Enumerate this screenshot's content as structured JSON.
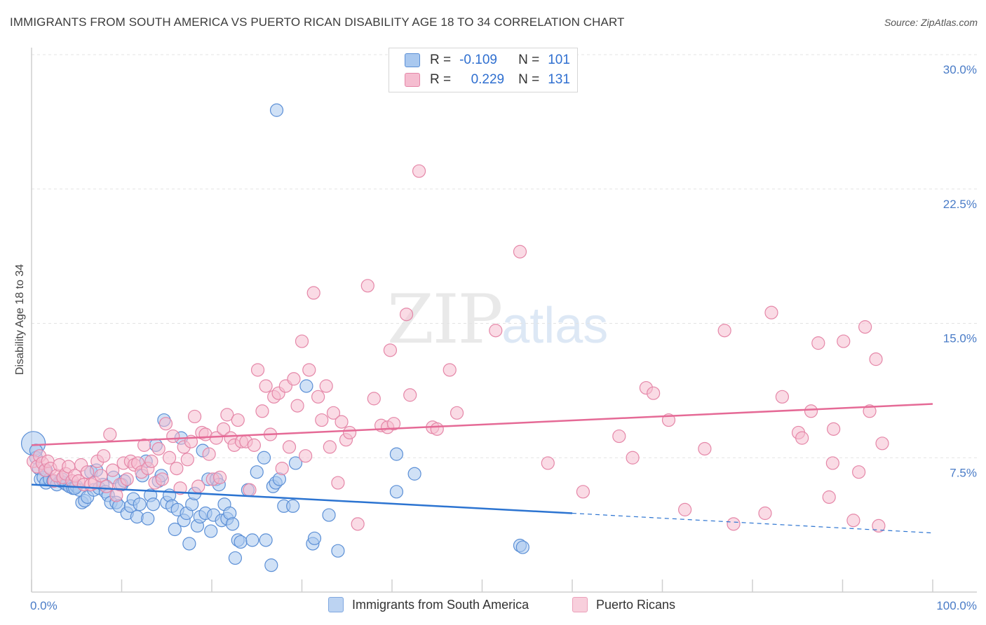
{
  "title": "IMMIGRANTS FROM SOUTH AMERICA VS PUERTO RICAN DISABILITY AGE 18 TO 34 CORRELATION CHART",
  "source": "Source: ZipAtlas.com",
  "watermark": {
    "zip": "ZIP",
    "atlas": "atlas"
  },
  "legend": {
    "rows": [
      {
        "r_label": "R =",
        "r_value": "-0.109",
        "n_label": "N =",
        "n_value": "101"
      },
      {
        "r_label": "R =",
        "r_value": "0.229",
        "n_label": "N =",
        "n_value": "131"
      }
    ]
  },
  "bottom_legend": {
    "series_a": "Immigrants from South America",
    "series_b": "Puerto Ricans"
  },
  "colors": {
    "blue_fill": "#a9c8ef",
    "blue_stroke": "#5b8fd6",
    "blue_line": "#2c74d1",
    "pink_fill": "#f5bdd0",
    "pink_stroke": "#e587a8",
    "pink_line": "#e56a96",
    "grid": "#e3e3e3",
    "tick_text": "#4a7cc7"
  },
  "chart_data": {
    "type": "scatter",
    "title": "IMMIGRANTS FROM SOUTH AMERICA VS PUERTO RICAN DISABILITY AGE 18 TO 34 CORRELATION CHART",
    "xlabel": "",
    "ylabel": "Disability Age 18 to 34",
    "xlim": [
      0,
      100
    ],
    "ylim": [
      0,
      30
    ],
    "x_tick_labels": [
      "0.0%",
      "100.0%"
    ],
    "y_ticks": [
      7.5,
      15.0,
      22.5,
      30.0
    ],
    "y_tick_labels": [
      "7.5%",
      "15.0%",
      "22.5%",
      "30.0%"
    ],
    "grid": true,
    "series": [
      {
        "name": "Immigrants from South America",
        "color": "blue",
        "r": -0.109,
        "n": 101,
        "trend": {
          "x0": 0,
          "y0": 6.0,
          "x1": 60,
          "y1": 4.4,
          "dash_to_x": 100,
          "dash_to_y": 3.3
        },
        "points": [
          [
            0.2,
            8.3
          ],
          [
            0.5,
            7.5
          ],
          [
            0.8,
            6.9
          ],
          [
            1.0,
            6.3
          ],
          [
            1.3,
            6.4
          ],
          [
            1.6,
            6.1
          ],
          [
            2.0,
            6.3
          ],
          [
            2.4,
            6.2
          ],
          [
            2.8,
            6.0
          ],
          [
            3.2,
            6.2
          ],
          [
            3.6,
            6.1
          ],
          [
            3.9,
            6.0
          ],
          [
            4.2,
            5.9
          ],
          [
            4.6,
            5.8
          ],
          [
            5.0,
            5.9
          ],
          [
            5.3,
            5.7
          ],
          [
            5.6,
            5.0
          ],
          [
            5.9,
            5.1
          ],
          [
            6.2,
            5.3
          ],
          [
            6.6,
            6.7
          ],
          [
            6.9,
            5.7
          ],
          [
            7.2,
            6.8
          ],
          [
            7.5,
            5.8
          ],
          [
            7.9,
            6.0
          ],
          [
            8.2,
            5.6
          ],
          [
            8.5,
            5.4
          ],
          [
            8.8,
            5.0
          ],
          [
            9.1,
            6.4
          ],
          [
            9.4,
            5.0
          ],
          [
            9.7,
            4.8
          ],
          [
            10.0,
            6.0
          ],
          [
            10.3,
            6.2
          ],
          [
            10.6,
            4.4
          ],
          [
            11.0,
            4.8
          ],
          [
            11.3,
            5.2
          ],
          [
            11.7,
            4.2
          ],
          [
            12.0,
            4.9
          ],
          [
            12.3,
            6.5
          ],
          [
            12.7,
            7.3
          ],
          [
            12.9,
            4.1
          ],
          [
            13.2,
            5.4
          ],
          [
            13.5,
            4.9
          ],
          [
            13.8,
            8.2
          ],
          [
            14.1,
            6.2
          ],
          [
            14.4,
            6.5
          ],
          [
            14.7,
            9.6
          ],
          [
            15.0,
            5.0
          ],
          [
            15.3,
            5.4
          ],
          [
            15.6,
            4.8
          ],
          [
            15.9,
            3.5
          ],
          [
            16.2,
            4.6
          ],
          [
            16.6,
            8.6
          ],
          [
            16.9,
            4.0
          ],
          [
            17.2,
            4.4
          ],
          [
            17.5,
            2.7
          ],
          [
            17.8,
            4.9
          ],
          [
            18.1,
            5.5
          ],
          [
            18.4,
            3.7
          ],
          [
            18.7,
            4.2
          ],
          [
            19.0,
            7.9
          ],
          [
            19.3,
            4.4
          ],
          [
            19.6,
            6.3
          ],
          [
            19.9,
            3.4
          ],
          [
            20.2,
            4.3
          ],
          [
            20.5,
            6.3
          ],
          [
            20.8,
            6.0
          ],
          [
            21.1,
            4.0
          ],
          [
            21.4,
            4.9
          ],
          [
            21.7,
            4.1
          ],
          [
            22.0,
            4.4
          ],
          [
            22.3,
            3.8
          ],
          [
            22.6,
            1.9
          ],
          [
            22.9,
            2.9
          ],
          [
            23.2,
            2.8
          ],
          [
            24.0,
            5.7
          ],
          [
            24.5,
            2.9
          ],
          [
            25.0,
            6.7
          ],
          [
            25.8,
            7.5
          ],
          [
            26.0,
            2.9
          ],
          [
            26.6,
            1.5
          ],
          [
            26.8,
            5.9
          ],
          [
            27.1,
            6.1
          ],
          [
            27.5,
            6.3
          ],
          [
            28.0,
            4.8
          ],
          [
            29.0,
            4.8
          ],
          [
            29.3,
            7.2
          ],
          [
            30.5,
            11.5
          ],
          [
            31.2,
            2.7
          ],
          [
            31.4,
            3.0
          ],
          [
            33.0,
            4.3
          ],
          [
            34.0,
            2.3
          ],
          [
            40.5,
            5.6
          ],
          [
            40.5,
            7.7
          ],
          [
            42.5,
            6.6
          ],
          [
            54.2,
            2.6
          ],
          [
            54.5,
            2.5
          ],
          [
            27.2,
            26.9
          ],
          [
            0.5,
            7.9
          ],
          [
            1.6,
            6.8
          ],
          [
            4.8,
            5.8
          ],
          [
            3.4,
            6.3
          ]
        ]
      },
      {
        "name": "Puerto Ricans",
        "color": "pink",
        "r": 0.229,
        "n": 131,
        "trend": {
          "x0": 0,
          "y0": 8.2,
          "x1": 100,
          "y1": 10.5
        },
        "points": [
          [
            0.2,
            7.3
          ],
          [
            0.6,
            7.0
          ],
          [
            0.9,
            7.6
          ],
          [
            1.2,
            7.2
          ],
          [
            1.5,
            6.8
          ],
          [
            1.8,
            7.3
          ],
          [
            2.1,
            6.9
          ],
          [
            2.5,
            6.2
          ],
          [
            2.8,
            6.5
          ],
          [
            3.1,
            7.1
          ],
          [
            3.5,
            6.4
          ],
          [
            3.8,
            6.6
          ],
          [
            4.1,
            7.0
          ],
          [
            4.5,
            6.2
          ],
          [
            4.8,
            6.5
          ],
          [
            5.2,
            6.2
          ],
          [
            5.5,
            7.1
          ],
          [
            5.8,
            6.0
          ],
          [
            6.2,
            6.7
          ],
          [
            6.6,
            6.0
          ],
          [
            7.0,
            6.1
          ],
          [
            7.3,
            7.3
          ],
          [
            7.7,
            6.5
          ],
          [
            8.0,
            7.6
          ],
          [
            8.3,
            5.9
          ],
          [
            8.7,
            8.8
          ],
          [
            9.0,
            6.8
          ],
          [
            9.4,
            5.4
          ],
          [
            9.8,
            6.0
          ],
          [
            10.2,
            7.2
          ],
          [
            10.6,
            6.3
          ],
          [
            11.0,
            7.3
          ],
          [
            11.4,
            7.1
          ],
          [
            11.8,
            7.2
          ],
          [
            12.2,
            6.7
          ],
          [
            12.5,
            8.2
          ],
          [
            12.9,
            6.9
          ],
          [
            13.3,
            7.3
          ],
          [
            13.7,
            6.1
          ],
          [
            14.1,
            8.0
          ],
          [
            14.5,
            6.3
          ],
          [
            14.9,
            9.4
          ],
          [
            15.3,
            7.5
          ],
          [
            15.7,
            8.7
          ],
          [
            16.1,
            6.9
          ],
          [
            16.5,
            5.8
          ],
          [
            16.9,
            8.1
          ],
          [
            17.3,
            7.4
          ],
          [
            17.7,
            8.4
          ],
          [
            18.1,
            9.8
          ],
          [
            18.5,
            5.9
          ],
          [
            18.9,
            8.9
          ],
          [
            19.3,
            8.8
          ],
          [
            19.7,
            7.7
          ],
          [
            20.1,
            6.3
          ],
          [
            20.5,
            8.6
          ],
          [
            20.9,
            6.4
          ],
          [
            21.3,
            9.1
          ],
          [
            21.7,
            9.9
          ],
          [
            22.1,
            8.6
          ],
          [
            22.5,
            8.2
          ],
          [
            22.9,
            9.6
          ],
          [
            23.3,
            8.4
          ],
          [
            23.8,
            8.4
          ],
          [
            24.2,
            5.7
          ],
          [
            24.7,
            8.2
          ],
          [
            25.1,
            12.4
          ],
          [
            25.6,
            10.1
          ],
          [
            26.0,
            11.5
          ],
          [
            26.5,
            8.8
          ],
          [
            26.9,
            10.9
          ],
          [
            27.4,
            11.1
          ],
          [
            27.8,
            6.9
          ],
          [
            28.2,
            11.5
          ],
          [
            28.6,
            8.1
          ],
          [
            29.1,
            11.9
          ],
          [
            29.5,
            10.4
          ],
          [
            30.0,
            14.0
          ],
          [
            30.4,
            7.6
          ],
          [
            30.8,
            12.4
          ],
          [
            31.3,
            16.7
          ],
          [
            31.8,
            10.9
          ],
          [
            32.2,
            9.6
          ],
          [
            32.7,
            11.5
          ],
          [
            33.1,
            8.1
          ],
          [
            33.5,
            10.0
          ],
          [
            34.0,
            6.1
          ],
          [
            34.4,
            9.5
          ],
          [
            34.9,
            8.5
          ],
          [
            35.3,
            8.9
          ],
          [
            36.2,
            3.8
          ],
          [
            37.3,
            17.1
          ],
          [
            38.0,
            10.8
          ],
          [
            38.8,
            9.3
          ],
          [
            39.5,
            9.2
          ],
          [
            39.8,
            13.5
          ],
          [
            40.2,
            9.4
          ],
          [
            41.6,
            15.5
          ],
          [
            42.0,
            11.0
          ],
          [
            43.0,
            23.5
          ],
          [
            44.5,
            9.2
          ],
          [
            45.0,
            9.1
          ],
          [
            46.4,
            12.4
          ],
          [
            47.2,
            10.0
          ],
          [
            51.5,
            14.6
          ],
          [
            54.2,
            19.0
          ],
          [
            57.3,
            7.2
          ],
          [
            61.2,
            5.6
          ],
          [
            65.2,
            8.7
          ],
          [
            66.7,
            7.5
          ],
          [
            68.2,
            11.4
          ],
          [
            69.0,
            11.1
          ],
          [
            70.7,
            9.6
          ],
          [
            72.5,
            4.6
          ],
          [
            74.7,
            8.0
          ],
          [
            76.9,
            14.6
          ],
          [
            77.9,
            3.8
          ],
          [
            81.4,
            4.4
          ],
          [
            82.1,
            15.6
          ],
          [
            83.3,
            10.9
          ],
          [
            85.1,
            8.9
          ],
          [
            85.5,
            8.6
          ],
          [
            86.5,
            10.1
          ],
          [
            87.3,
            13.9
          ],
          [
            88.5,
            5.3
          ],
          [
            88.9,
            7.2
          ],
          [
            89.0,
            9.1
          ],
          [
            90.1,
            14.0
          ],
          [
            91.2,
            4.0
          ],
          [
            91.8,
            6.7
          ],
          [
            92.5,
            14.8
          ],
          [
            93.0,
            10.1
          ],
          [
            93.7,
            13.0
          ],
          [
            94.0,
            3.7
          ],
          [
            94.4,
            8.3
          ]
        ]
      }
    ]
  }
}
